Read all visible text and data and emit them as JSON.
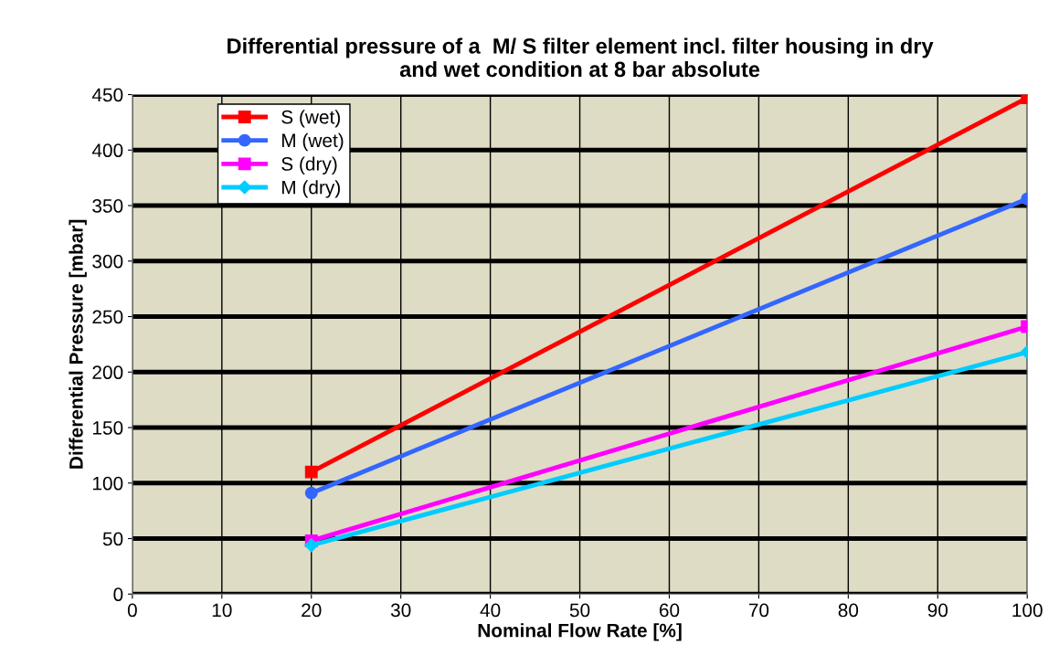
{
  "chart_data": {
    "type": "line",
    "title": "Differential pressure of a  M/ S filter element incl. filter housing in dry\nand wet condition at 8 bar absolute",
    "xlabel": "Nominal Flow Rate [%]",
    "ylabel": "Differential Pressure [mbar]",
    "x": [
      20,
      100
    ],
    "series": [
      {
        "name": "S (wet)",
        "color": "#ff0000",
        "marker": "square",
        "values": [
          110,
          447
        ]
      },
      {
        "name": "M (wet)",
        "color": "#3366ff",
        "marker": "circle",
        "values": [
          91,
          356
        ]
      },
      {
        "name": "S (dry)",
        "color": "#ff00ff",
        "marker": "square",
        "values": [
          48,
          241
        ]
      },
      {
        "name": "M (dry)",
        "color": "#00ccff",
        "marker": "diamond",
        "values": [
          44,
          218
        ]
      }
    ],
    "xlim": [
      0,
      100
    ],
    "xticks": [
      0,
      10,
      20,
      30,
      40,
      50,
      60,
      70,
      80,
      90,
      100
    ],
    "ylim": [
      0,
      450
    ],
    "yticks": [
      0,
      50,
      100,
      150,
      200,
      250,
      300,
      350,
      400,
      450
    ],
    "grid": true,
    "legend": "top left",
    "line_style": "solid"
  }
}
